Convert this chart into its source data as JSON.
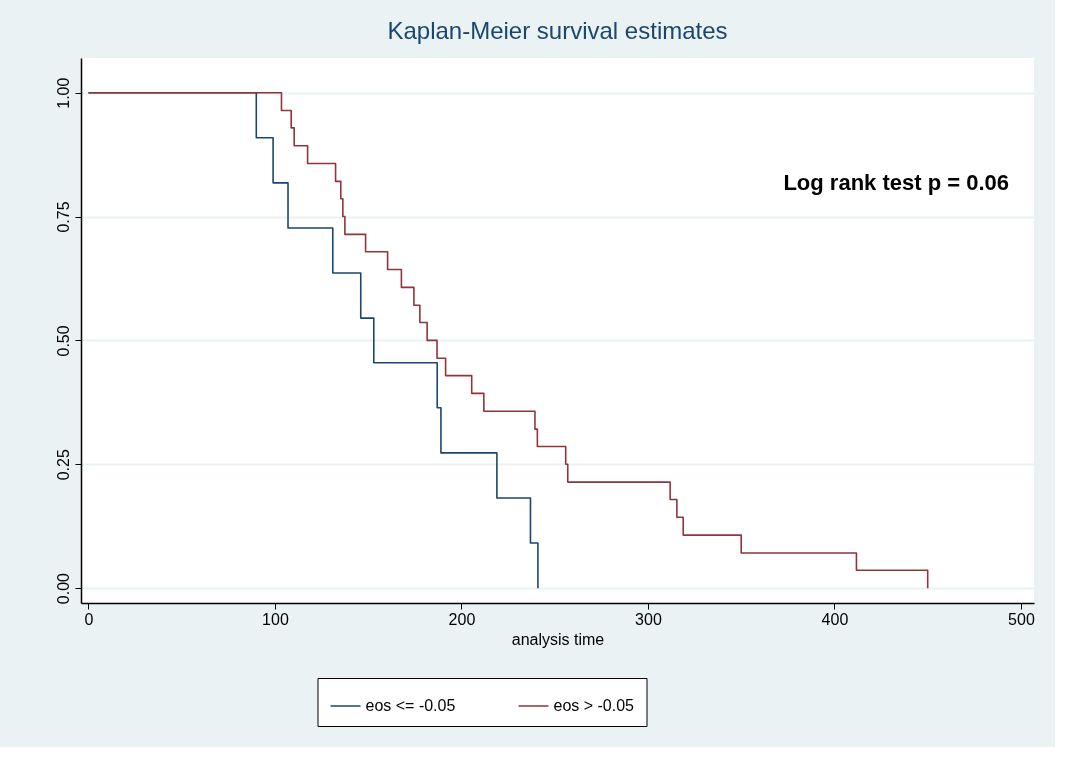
{
  "chart_data": {
    "type": "step",
    "title": "Kaplan-Meier survival estimates",
    "xlabel": "analysis time",
    "annotations": [
      "Log rank test p = 0.06"
    ],
    "series": [
      {
        "name": "eos <= -0.05",
        "color": "#1a476f",
        "x": [
          0,
          90,
          99,
          107,
          131,
          146,
          153,
          187,
          189,
          219,
          237,
          241
        ],
        "values": [
          1,
          0.909,
          0.818,
          0.727,
          0.636,
          0.545,
          0.455,
          0.364,
          0.273,
          0.182,
          0.091,
          0
        ]
      },
      {
        "name": "eos > -0.05",
        "color": "#90353b",
        "x": [
          0,
          103.5,
          108.7,
          110.3,
          117.5,
          132.5,
          135.3,
          136.4,
          137.5,
          148.6,
          160.4,
          167.8,
          174.5,
          177.7,
          181.6,
          186.9,
          191.5,
          205.5,
          212,
          239.4,
          240.7,
          255.9,
          257,
          311.9,
          315.5,
          318.9,
          350,
          411.8,
          450
        ],
        "values": [
          1,
          0.964,
          0.929,
          0.893,
          0.857,
          0.821,
          0.786,
          0.75,
          0.714,
          0.679,
          0.643,
          0.607,
          0.571,
          0.536,
          0.5,
          0.464,
          0.429,
          0.393,
          0.357,
          0.321,
          0.286,
          0.25,
          0.214,
          0.179,
          0.143,
          0.107,
          0.071,
          0.036,
          0
        ]
      }
    ],
    "xlim": [
      -4,
      507
    ],
    "ylim": [
      -0.03,
      1.07
    ],
    "xticks": [
      0,
      100,
      200,
      300,
      400,
      500
    ],
    "yticks": [
      {
        "value": 0,
        "label": "0.00"
      },
      {
        "value": 0.25,
        "label": "0.25"
      },
      {
        "value": 0.5,
        "label": "0.50"
      },
      {
        "value": 0.75,
        "label": "0.75"
      },
      {
        "value": 1,
        "label": "1.00"
      }
    ],
    "grid": "y",
    "legend": "bottom",
    "line_style": "solid",
    "marker": "none"
  }
}
